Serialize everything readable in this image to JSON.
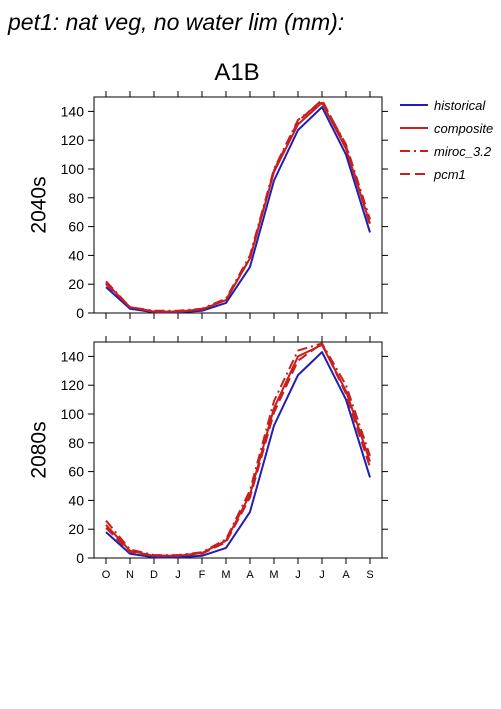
{
  "figure": {
    "title": "pet1: nat veg, no water lim (mm):",
    "scenario": "A1B"
  },
  "colors": {
    "historical": "#1f1fb4",
    "projection": "#c81e1e"
  },
  "legend": {
    "placement": "right",
    "entries": [
      {
        "label": "historical",
        "style": "solid",
        "color": "#1f1fb4"
      },
      {
        "label": "composite",
        "style": "solid",
        "color": "#c81e1e"
      },
      {
        "label": "miroc_3.2",
        "style": "dashdot",
        "color": "#c81e1e"
      },
      {
        "label": "pcm1",
        "style": "dash",
        "color": "#c81e1e"
      }
    ]
  },
  "chart_data": [
    {
      "type": "line",
      "ylabel": "2040s",
      "xlabel": "",
      "categories": [
        "O",
        "N",
        "D",
        "J",
        "F",
        "M",
        "A",
        "M",
        "J",
        "J",
        "A",
        "S"
      ],
      "ylim": [
        0,
        150
      ],
      "yticks": [
        0,
        20,
        40,
        60,
        80,
        100,
        120,
        140
      ],
      "series": [
        {
          "name": "historical",
          "style": "solid",
          "values": [
            18,
            3,
            0.5,
            0.5,
            1.5,
            7,
            32,
            92,
            127,
            143,
            110,
            56
          ]
        },
        {
          "name": "composite",
          "style": "solid",
          "values": [
            21,
            4,
            1,
            1,
            2.5,
            9,
            38,
            98,
            131,
            146,
            114,
            62
          ]
        },
        {
          "name": "miroc_3.2",
          "style": "dashdot",
          "values": [
            22,
            4,
            1.5,
            1.5,
            3,
            10,
            40,
            100,
            134,
            147,
            117,
            65
          ]
        },
        {
          "name": "pcm1",
          "style": "dash",
          "values": [
            20,
            4,
            1,
            1,
            2.5,
            9,
            38,
            99,
            133,
            148,
            116,
            61
          ]
        }
      ]
    },
    {
      "type": "line",
      "ylabel": "2080s",
      "xlabel": "",
      "categories": [
        "O",
        "N",
        "D",
        "J",
        "F",
        "M",
        "A",
        "M",
        "J",
        "J",
        "A",
        "S"
      ],
      "ylim": [
        0,
        150
      ],
      "yticks": [
        0,
        20,
        40,
        60,
        80,
        100,
        120,
        140
      ],
      "series": [
        {
          "name": "historical",
          "style": "solid",
          "values": [
            18,
            3,
            0.5,
            0.5,
            1.5,
            7,
            32,
            92,
            127,
            143,
            110,
            56
          ]
        },
        {
          "name": "composite",
          "style": "solid",
          "values": [
            23,
            5,
            1.5,
            1.5,
            3.5,
            12,
            44,
            104,
            140,
            148,
            116,
            67
          ]
        },
        {
          "name": "miroc_3.2",
          "style": "dashdot",
          "values": [
            26,
            6,
            2,
            2,
            4,
            13,
            47,
            109,
            144,
            149,
            120,
            71
          ]
        },
        {
          "name": "pcm1",
          "style": "dash",
          "values": [
            21,
            4,
            1.5,
            1.5,
            3,
            11,
            42,
            101,
            137,
            149,
            114,
            63
          ]
        }
      ]
    }
  ]
}
